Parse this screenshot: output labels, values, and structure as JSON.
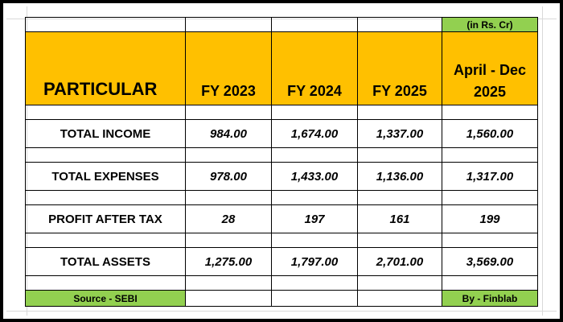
{
  "unit_note": "(in Rs. Cr)",
  "header": {
    "particular": "PARTICULAR",
    "columns": [
      "FY 2023",
      "FY 2024",
      "FY 2025",
      "April - Dec 2025"
    ]
  },
  "rows": [
    {
      "label": "TOTAL INCOME",
      "values": [
        "984.00",
        "1,674.00",
        "1,337.00",
        "1,560.00"
      ]
    },
    {
      "label": "TOTAL EXPENSES",
      "values": [
        "978.00",
        "1,433.00",
        "1,136.00",
        "1,317.00"
      ]
    },
    {
      "label": "PROFIT AFTER TAX",
      "values": [
        "28",
        "197",
        "161",
        "199"
      ]
    },
    {
      "label": "TOTAL ASSETS",
      "values": [
        "1,275.00",
        "1,797.00",
        "2,701.00",
        "3,569.00"
      ]
    }
  ],
  "footer": {
    "source": "Source - SEBI",
    "credit": "By - Finblab"
  },
  "colors": {
    "header_fill": "#ffc000",
    "accent_green": "#92d050",
    "frame_border": "#000000"
  }
}
